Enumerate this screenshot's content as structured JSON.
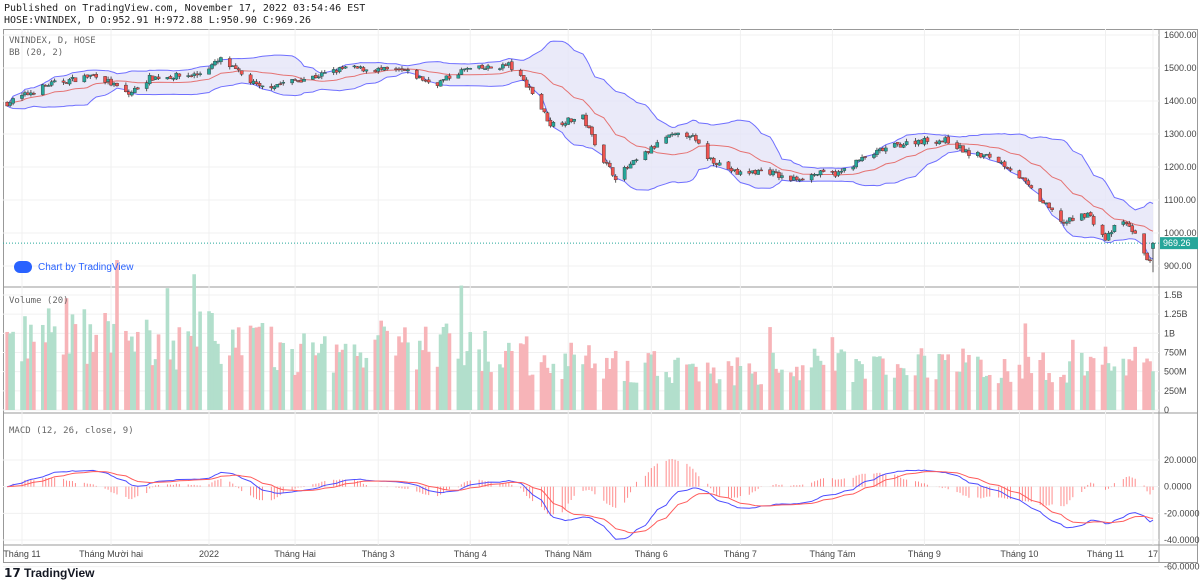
{
  "header": {
    "published": "Published on TradingView.com, November 17, 2022 03:54:46 EST",
    "ohlc": "HOSE:VNINDEX, D O:952.91 H:972.88 L:950.90 C:969.26"
  },
  "legend": {
    "symbol": "VNINDEX, D, HOSE",
    "bb": "BB (20, 2)",
    "volume": "Volume (20)",
    "macd": "MACD (12, 26, close, 9)"
  },
  "chart_by": "Chart by TradingView",
  "brand": "TradingView",
  "colors": {
    "up": "#26a69a",
    "down": "#ef5350",
    "bb_band": "#6f6fff",
    "bb_fill": "#e5e5f7",
    "bb_basis": "#e57373",
    "macd": "#4d4dff",
    "signal": "#ff5c5c"
  },
  "chart_data": {
    "type": "candlestick",
    "price_axis": {
      "ticks": [
        "1600.00",
        "1500.00",
        "1400.00",
        "1300.00",
        "1200.00",
        "1100.00",
        "1000.00",
        "900.00"
      ],
      "ylim": [
        900,
        1600
      ]
    },
    "volume_axis": {
      "ticks": [
        "1.5B",
        "1.25B",
        "1B",
        "750M",
        "500M",
        "250M",
        "0"
      ],
      "ylim": [
        0,
        1.5
      ]
    },
    "macd_axis": {
      "ticks": [
        "20.0000",
        "0.0000",
        "-20.0000",
        "-40.0000",
        "-60.0000"
      ],
      "ylim": [
        -60,
        20
      ]
    },
    "time_axis": [
      {
        "label": "Tháng 11",
        "date": "2021-11-01"
      },
      {
        "label": "Tháng Mười hai",
        "date": "2021-12-01"
      },
      {
        "label": "2022",
        "date": "2022-01-03"
      },
      {
        "label": "Tháng Hai",
        "date": "2022-02-01"
      },
      {
        "label": "Tháng 3",
        "date": "2022-03-01"
      },
      {
        "label": "Tháng 4",
        "date": "2022-04-01"
      },
      {
        "label": "Tháng Năm",
        "date": "2022-05-04"
      },
      {
        "label": "Tháng 6",
        "date": "2022-06-01"
      },
      {
        "label": "Tháng 7",
        "date": "2022-07-01"
      },
      {
        "label": "Tháng Tám",
        "date": "2022-08-01"
      },
      {
        "label": "Tháng 9",
        "date": "2022-09-01"
      },
      {
        "label": "Tháng 10",
        "date": "2022-10-03"
      },
      {
        "label": "Tháng 11",
        "date": "2022-11-01"
      },
      {
        "label": "17",
        "date": "2022-11-17"
      }
    ],
    "last_price": "969.26",
    "last": {
      "open": 952.91,
      "high": 972.88,
      "low": 950.9,
      "close": 969.26
    },
    "close_points": [
      [
        "2021-10-26",
        1390
      ],
      [
        "2021-11-10",
        1450
      ],
      [
        "2021-11-26",
        1480
      ],
      [
        "2021-12-07",
        1420
      ],
      [
        "2021-12-14",
        1470
      ],
      [
        "2021-12-30",
        1480
      ],
      [
        "2022-01-07",
        1525
      ],
      [
        "2022-01-20",
        1440
      ],
      [
        "2022-02-08",
        1475
      ],
      [
        "2022-02-18",
        1500
      ],
      [
        "2022-02-28",
        1495
      ],
      [
        "2022-03-10",
        1490
      ],
      [
        "2022-03-20",
        1450
      ],
      [
        "2022-03-30",
        1495
      ],
      [
        "2022-04-08",
        1500
      ],
      [
        "2022-04-14",
        1510
      ],
      [
        "2022-04-21",
        1440
      ],
      [
        "2022-04-28",
        1330
      ],
      [
        "2022-05-09",
        1350
      ],
      [
        "2022-05-16",
        1220
      ],
      [
        "2022-05-20",
        1170
      ],
      [
        "2022-05-30",
        1240
      ],
      [
        "2022-06-06",
        1290
      ],
      [
        "2022-06-14",
        1300
      ],
      [
        "2022-06-20",
        1230
      ],
      [
        "2022-06-30",
        1180
      ],
      [
        "2022-07-10",
        1190
      ],
      [
        "2022-07-17",
        1160
      ],
      [
        "2022-07-27",
        1180
      ],
      [
        "2022-08-03",
        1180
      ],
      [
        "2022-08-10",
        1220
      ],
      [
        "2022-08-20",
        1260
      ],
      [
        "2022-08-30",
        1280
      ],
      [
        "2022-09-09",
        1280
      ],
      [
        "2022-09-16",
        1240
      ],
      [
        "2022-09-24",
        1230
      ],
      [
        "2022-10-01",
        1190
      ],
      [
        "2022-10-10",
        1100
      ],
      [
        "2022-10-18",
        1030
      ],
      [
        "2022-10-26",
        1060
      ],
      [
        "2022-11-01",
        980
      ],
      [
        "2022-11-06",
        1040
      ],
      [
        "2022-11-10",
        1010
      ],
      [
        "2022-11-14",
        940
      ],
      [
        "2022-11-16",
        910
      ],
      [
        "2022-11-17",
        969.26
      ]
    ],
    "volume_points_billion": [
      [
        "2021-10-26",
        0.85
      ],
      [
        "2021-11-15",
        1.05
      ],
      [
        "2021-12-01",
        0.95
      ],
      [
        "2021-12-20",
        0.85
      ],
      [
        "2022-01-07",
        1.0
      ],
      [
        "2022-02-01",
        0.7
      ],
      [
        "2022-03-01",
        0.85
      ],
      [
        "2022-04-01",
        0.8
      ],
      [
        "2022-05-01",
        0.65
      ],
      [
        "2022-06-01",
        0.55
      ],
      [
        "2022-07-01",
        0.5
      ],
      [
        "2022-08-01",
        0.6
      ],
      [
        "2022-09-01",
        0.6
      ],
      [
        "2022-10-01",
        0.55
      ],
      [
        "2022-11-01",
        0.55
      ],
      [
        "2022-11-17",
        0.72
      ]
    ]
  }
}
